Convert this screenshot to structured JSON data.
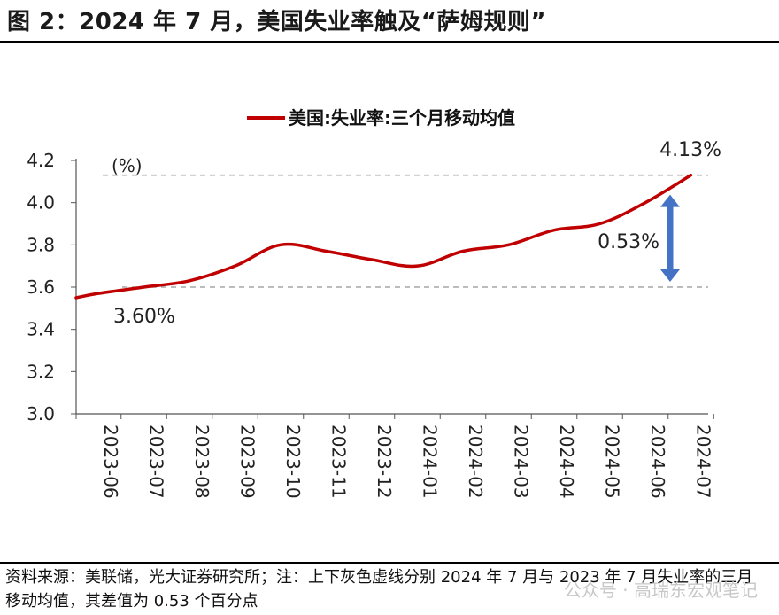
{
  "header": {
    "title": "图 2：2024 年 7 月，美国失业率触及“萨姆规则”"
  },
  "footer": {
    "source": "资料来源：美联储，光大证券研究所；注：上下灰色虚线分别 2024 年 7 月与 2023 年 7 月失业率的三月移动均值，其差值为 0.53 个百分点",
    "watermark": "公众号 · 高瑞东宏观笔记"
  },
  "colors": {
    "series": "#c00000",
    "reference_lines": "#a6a6a6",
    "arrow": "#4472c4"
  },
  "chart_data": {
    "type": "line",
    "title": "",
    "ylabel": "(%)",
    "xlabel": "",
    "ylim": [
      3.0,
      4.2
    ],
    "yticks": [
      "3.0",
      "3.2",
      "3.4",
      "3.6",
      "3.8",
      "4.0",
      "4.2"
    ],
    "categories": [
      "2023-06",
      "2023-07",
      "2023-08",
      "2023-09",
      "2023-10",
      "2023-11",
      "2023-12",
      "2024-01",
      "2024-02",
      "2024-03",
      "2024-04",
      "2024-05",
      "2024-06",
      "2024-07"
    ],
    "series": [
      {
        "name": "美国:失业率:三个月移动均值",
        "values": [
          3.57,
          3.6,
          3.63,
          3.7,
          3.8,
          3.77,
          3.73,
          3.7,
          3.77,
          3.8,
          3.87,
          3.9,
          4.0,
          4.13
        ],
        "start_value": 3.55
      }
    ],
    "reference_lines": [
      {
        "name": "upper",
        "value": 4.13,
        "label": "4.13%"
      },
      {
        "name": "lower",
        "value": 3.6,
        "label": "3.60%"
      }
    ],
    "difference_label": "0.53%",
    "legend": "top-center"
  }
}
